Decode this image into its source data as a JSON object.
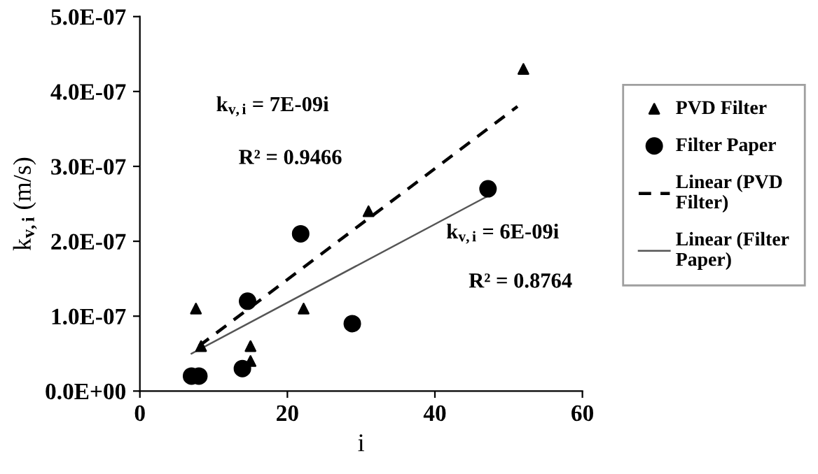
{
  "chart_data": {
    "type": "scatter",
    "xlabel": "i",
    "ylabel": "k$_{v,i}$ (m/s)",
    "xlim": [
      0,
      60
    ],
    "xticks": [
      0,
      20,
      40,
      60
    ],
    "ylim": [
      0,
      5e-07
    ],
    "yticks": [
      {
        "value": 0,
        "label": "0.0E+00"
      },
      {
        "value": 1e-07,
        "label": "1.0E-07"
      },
      {
        "value": 2e-07,
        "label": "2.0E-07"
      },
      {
        "value": 3e-07,
        "label": "3.0E-07"
      },
      {
        "value": 4e-07,
        "label": "4.0E-07"
      },
      {
        "value": 5e-07,
        "label": "5.0E-07"
      }
    ],
    "grid": false,
    "legend": "right",
    "series": [
      {
        "name": "PVD Filter",
        "marker": "triangle",
        "color": "#000000",
        "x": [
          7.6,
          8.3,
          15.0,
          15.0,
          22.2,
          31.0,
          52.0
        ],
        "values": [
          1.1e-07,
          6e-08,
          6e-08,
          4e-08,
          1.1e-07,
          2.4e-07,
          4.3e-07
        ]
      },
      {
        "name": "Filter Paper",
        "marker": "circle",
        "color": "#000000",
        "x": [
          7.0,
          8.0,
          13.9,
          14.6,
          21.8,
          28.8,
          47.2
        ],
        "values": [
          2e-08,
          2e-08,
          3e-08,
          1.2e-07,
          2.1e-07,
          9e-08,
          2.7e-07
        ]
      },
      {
        "name": "Linear (PVD Filter)",
        "type": "line",
        "line_style": "dashed",
        "marker": "none",
        "color": "#000000",
        "x": [
          8.0,
          51.2
        ],
        "values": [
          6e-08,
          3.8e-07
        ]
      },
      {
        "name": "Linear (Filter Paper)",
        "type": "line",
        "line_style": "solid",
        "marker": "none",
        "color": "#555555",
        "x": [
          7.0,
          47.1
        ],
        "values": [
          5e-08,
          2.6e-07
        ]
      }
    ],
    "annotations": [
      "k$_{v,i}$ = 7E-09i",
      "R² = 0.9466",
      "k$_{v,i}$ = 6E-09i",
      "R² = 0.8764"
    ]
  }
}
